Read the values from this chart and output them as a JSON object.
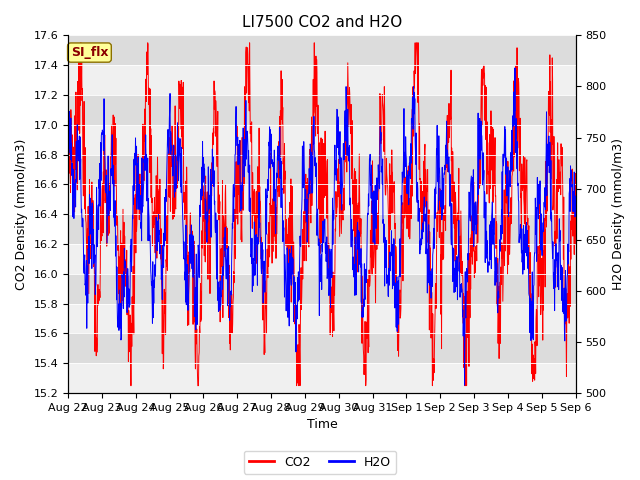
{
  "title": "LI7500 CO2 and H2O",
  "xlabel": "Time",
  "ylabel_left": "CO2 Density (mmol/m3)",
  "ylabel_right": "H2O Density (mmol/m3)",
  "ylim_left": [
    15.2,
    17.6
  ],
  "ylim_right": [
    500,
    850
  ],
  "yticks_left": [
    15.2,
    15.4,
    15.6,
    15.8,
    16.0,
    16.2,
    16.4,
    16.6,
    16.8,
    17.0,
    17.2,
    17.4,
    17.6
  ],
  "yticks_right": [
    500,
    550,
    600,
    650,
    700,
    750,
    800,
    850
  ],
  "xtick_labels": [
    "Aug 22",
    "Aug 23",
    "Aug 24",
    "Aug 25",
    "Aug 26",
    "Aug 27",
    "Aug 28",
    "Aug 29",
    "Aug 30",
    "Aug 31",
    "Sep 1",
    "Sep 2",
    "Sep 3",
    "Sep 4",
    "Sep 5",
    "Sep 6"
  ],
  "legend_label_co2": "CO2",
  "legend_label_h2o": "H2O",
  "color_co2": "#FF0000",
  "color_h2o": "#0000FF",
  "annotation_text": "SI_flx",
  "background_color_light": "#F0F0F0",
  "background_color_dark": "#DCDCDC",
  "title_fontsize": 11,
  "axis_label_fontsize": 9,
  "tick_fontsize": 8,
  "legend_fontsize": 9,
  "n_points": 1500,
  "seed": 7
}
